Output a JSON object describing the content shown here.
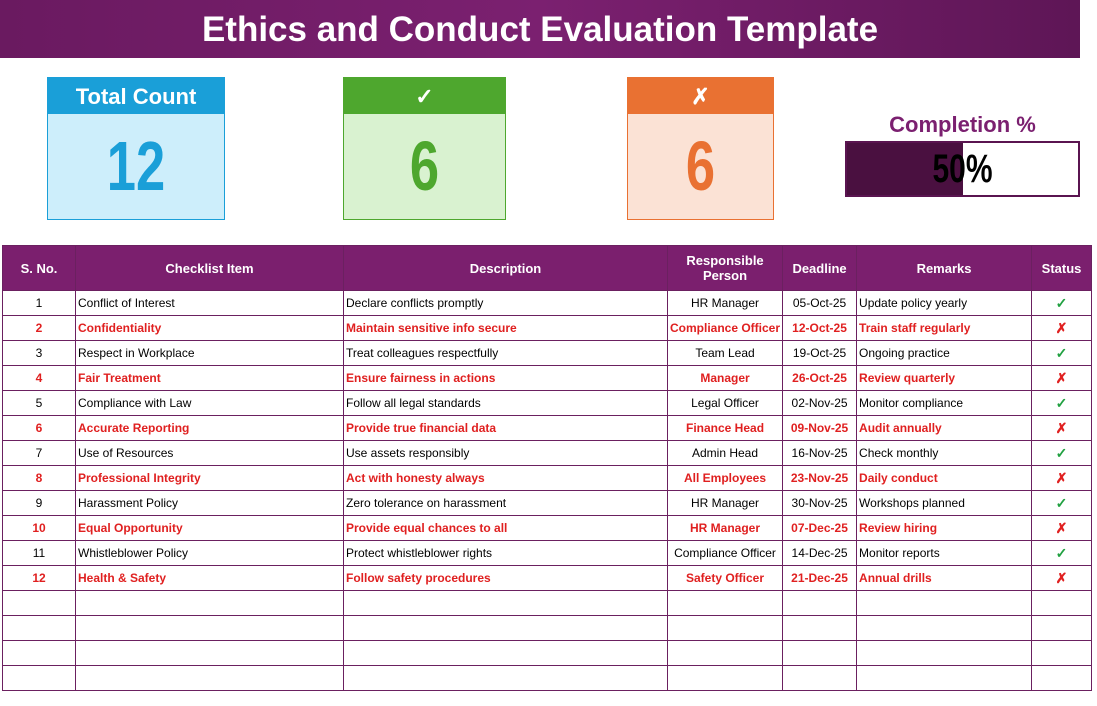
{
  "header": {
    "title": "Ethics and Conduct Evaluation Template"
  },
  "cards": [
    {
      "title": "Total Count",
      "value": 12
    },
    {
      "title": "✓",
      "value": 6
    },
    {
      "title": "✗",
      "value": 6
    }
  ],
  "completion": {
    "label": "Completion %",
    "value": 50,
    "value_label": "50%"
  },
  "table": {
    "headers": [
      "S. No.",
      "Checklist Item",
      "Description",
      "Responsible Person",
      "Deadline",
      "Remarks",
      "Status"
    ],
    "rows": [
      [
        1,
        "Conflict of Interest",
        "Declare conflicts promptly",
        "HR Manager",
        "05-Oct-25",
        "Update policy yearly",
        "✓"
      ],
      [
        2,
        "Confidentiality",
        "Maintain sensitive info secure",
        "Compliance Officer",
        "12-Oct-25",
        "Train staff regularly",
        "✗"
      ],
      [
        3,
        "Respect in Workplace",
        "Treat colleagues respectfully",
        "Team Lead",
        "19-Oct-25",
        "Ongoing practice",
        "✓"
      ],
      [
        4,
        "Fair Treatment",
        "Ensure fairness in actions",
        "Manager",
        "26-Oct-25",
        "Review quarterly",
        "✗"
      ],
      [
        5,
        "Compliance with Law",
        "Follow all legal standards",
        "Legal Officer",
        "02-Nov-25",
        "Monitor compliance",
        "✓"
      ],
      [
        6,
        "Accurate Reporting",
        "Provide true financial data",
        "Finance Head",
        "09-Nov-25",
        "Audit annually",
        "✗"
      ],
      [
        7,
        "Use of Resources",
        "Use assets responsibly",
        "Admin Head",
        "16-Nov-25",
        "Check monthly",
        "✓"
      ],
      [
        8,
        "Professional Integrity",
        "Act with honesty always",
        "All Employees",
        "23-Nov-25",
        "Daily conduct",
        "✗"
      ],
      [
        9,
        "Harassment Policy",
        "Zero tolerance on harassment",
        "HR Manager",
        "30-Nov-25",
        "Workshops planned",
        "✓"
      ],
      [
        10,
        "Equal Opportunity",
        "Provide equal chances to all",
        "HR Manager",
        "07-Dec-25",
        "Review hiring",
        "✗"
      ],
      [
        11,
        "Whistleblower Policy",
        "Protect whistleblower rights",
        "Compliance Officer",
        "14-Dec-25",
        "Monitor reports",
        "✓"
      ],
      [
        12,
        "Health & Safety",
        "Follow safety procedures",
        "Safety Officer",
        "21-Dec-25",
        "Annual drills",
        "✗"
      ]
    ]
  }
}
